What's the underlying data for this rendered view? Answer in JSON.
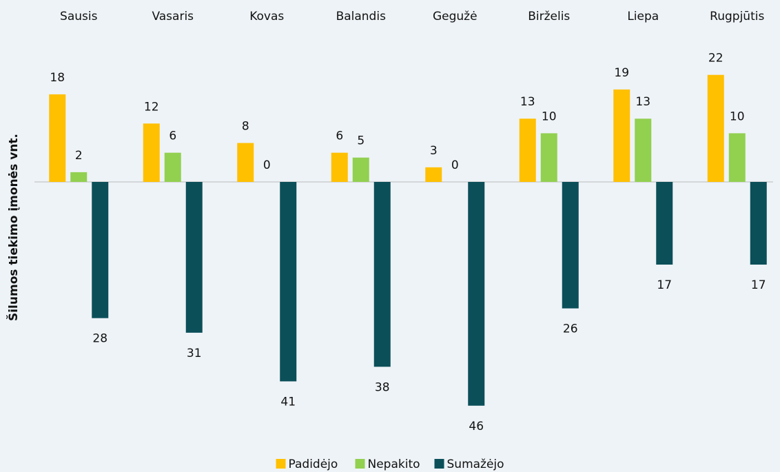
{
  "chart_data": {
    "type": "bar",
    "y_label": "Šilumos tiekimo įmonės vnt.",
    "categories": [
      "Sausis",
      "Vasaris",
      "Kovas",
      "Balandis",
      "Gegužė",
      "Birželis",
      "Liepa",
      "Rugpjūtis"
    ],
    "series": [
      {
        "name": "Padidėjo",
        "color": "#ffc000",
        "values": [
          18,
          12,
          8,
          6,
          3,
          13,
          19,
          22
        ]
      },
      {
        "name": "Nepakito",
        "color": "#92d050",
        "values": [
          2,
          6,
          0,
          5,
          0,
          10,
          13,
          10
        ]
      },
      {
        "name": "Sumažėjo",
        "color": "#0b4f59",
        "values": [
          -28,
          -31,
          -41,
          -38,
          -46,
          -26,
          -17,
          -17
        ],
        "value_labels": [
          "28",
          "31",
          "41",
          "38",
          "46",
          "26",
          "17",
          "17"
        ]
      }
    ],
    "ylim": [
      -50,
      25
    ],
    "legend": "bottom"
  }
}
